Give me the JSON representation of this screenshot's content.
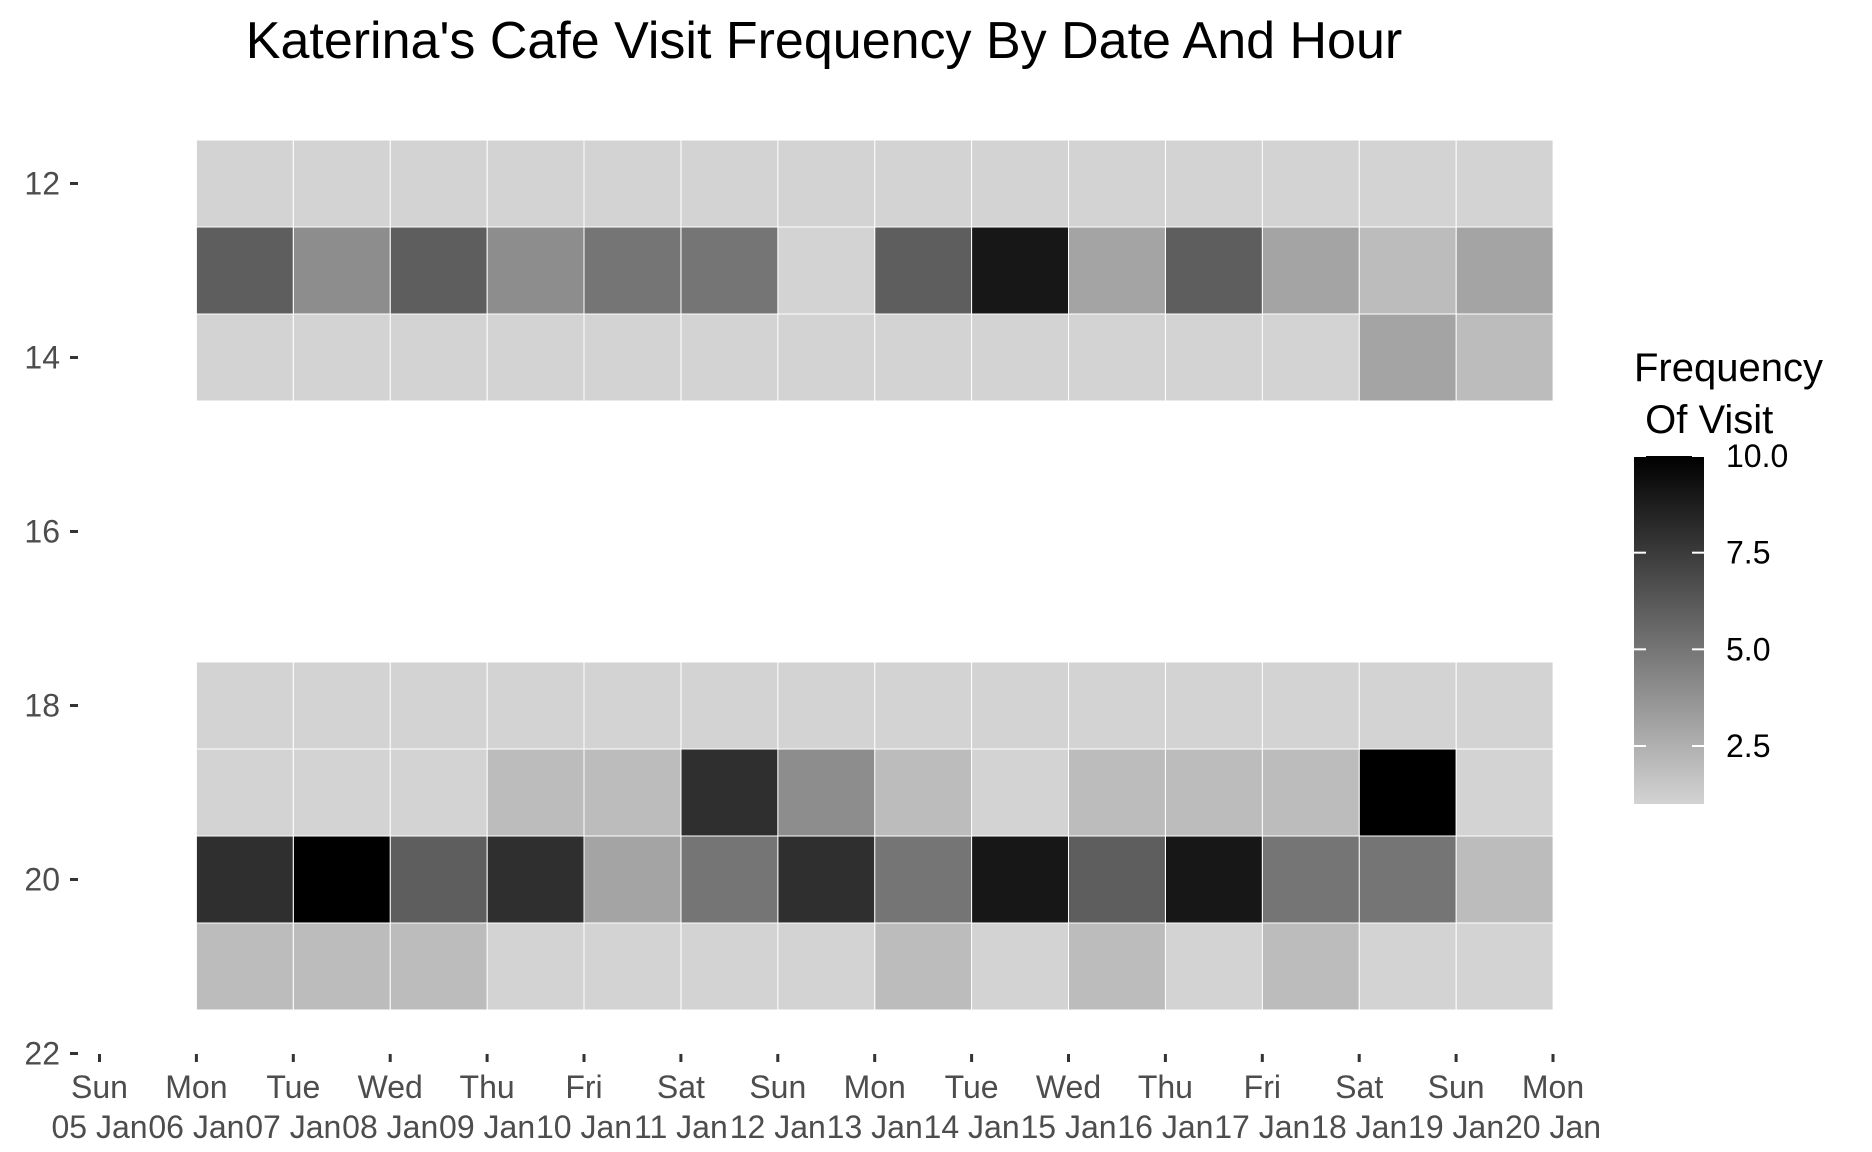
{
  "chart_data": {
    "type": "heatmap",
    "title": "Katerina's Cafe Visit Frequency By Date And Hour",
    "xlabel": "",
    "ylabel": "",
    "x_ticks": [
      {
        "weekday": "Sun",
        "date": "05 Jan"
      },
      {
        "weekday": "Mon",
        "date": "06 Jan"
      },
      {
        "weekday": "Tue",
        "date": "07 Jan"
      },
      {
        "weekday": "Wed",
        "date": "08 Jan"
      },
      {
        "weekday": "Thu",
        "date": "09 Jan"
      },
      {
        "weekday": "Fri",
        "date": "10 Jan"
      },
      {
        "weekday": "Sat",
        "date": "11 Jan"
      },
      {
        "weekday": "Sun",
        "date": "12 Jan"
      },
      {
        "weekday": "Mon",
        "date": "13 Jan"
      },
      {
        "weekday": "Tue",
        "date": "14 Jan"
      },
      {
        "weekday": "Wed",
        "date": "15 Jan"
      },
      {
        "weekday": "Thu",
        "date": "16 Jan"
      },
      {
        "weekday": "Fri",
        "date": "17 Jan"
      },
      {
        "weekday": "Sat",
        "date": "18 Jan"
      },
      {
        "weekday": "Sun",
        "date": "19 Jan"
      },
      {
        "weekday": "Mon",
        "date": "20 Jan"
      }
    ],
    "y_ticks": [
      "12",
      "14",
      "16",
      "18",
      "20",
      "22"
    ],
    "xlim": [
      "2014-01-05",
      "2014-01-20"
    ],
    "ylim": [
      22,
      12
    ],
    "dates": [
      "06 Jan",
      "07 Jan",
      "08 Jan",
      "09 Jan",
      "10 Jan",
      "11 Jan",
      "12 Jan",
      "13 Jan",
      "14 Jan",
      "15 Jan",
      "16 Jan",
      "17 Jan",
      "18 Jan",
      "19 Jan"
    ],
    "hours": [
      12,
      13,
      14,
      18,
      19,
      20,
      21
    ],
    "values": [
      [
        1,
        1,
        1,
        1,
        1,
        1,
        1,
        1,
        1,
        1,
        1,
        1,
        1,
        1
      ],
      [
        6,
        4,
        6,
        4,
        5,
        5,
        1,
        6,
        9,
        3,
        6,
        3,
        2,
        3
      ],
      [
        1,
        1,
        1,
        1,
        1,
        1,
        1,
        1,
        1,
        1,
        1,
        1,
        3,
        2
      ],
      [
        1,
        1,
        1,
        1,
        1,
        1,
        1,
        1,
        1,
        1,
        1,
        1,
        1,
        1
      ],
      [
        1,
        1,
        1,
        2,
        2,
        8,
        4,
        2,
        1,
        2,
        2,
        2,
        10,
        1
      ],
      [
        8,
        10,
        6,
        8,
        3,
        5,
        8,
        5,
        9,
        6,
        9,
        5,
        5,
        2
      ],
      [
        2,
        2,
        2,
        1,
        1,
        1,
        1,
        2,
        1,
        2,
        1,
        2,
        1,
        1
      ]
    ],
    "legend": {
      "title": "Frequency\n Of Visit",
      "position": "right",
      "min": 1,
      "max": 10,
      "ticks": [
        {
          "value": 2.5,
          "label": "2.5"
        },
        {
          "value": 5,
          "label": "5.0"
        },
        {
          "value": 7.5,
          "label": "7.5"
        },
        {
          "value": 10,
          "label": "10.0"
        }
      ],
      "low_color": "#d3d3d3",
      "high_color": "#000000"
    },
    "grid": false
  }
}
